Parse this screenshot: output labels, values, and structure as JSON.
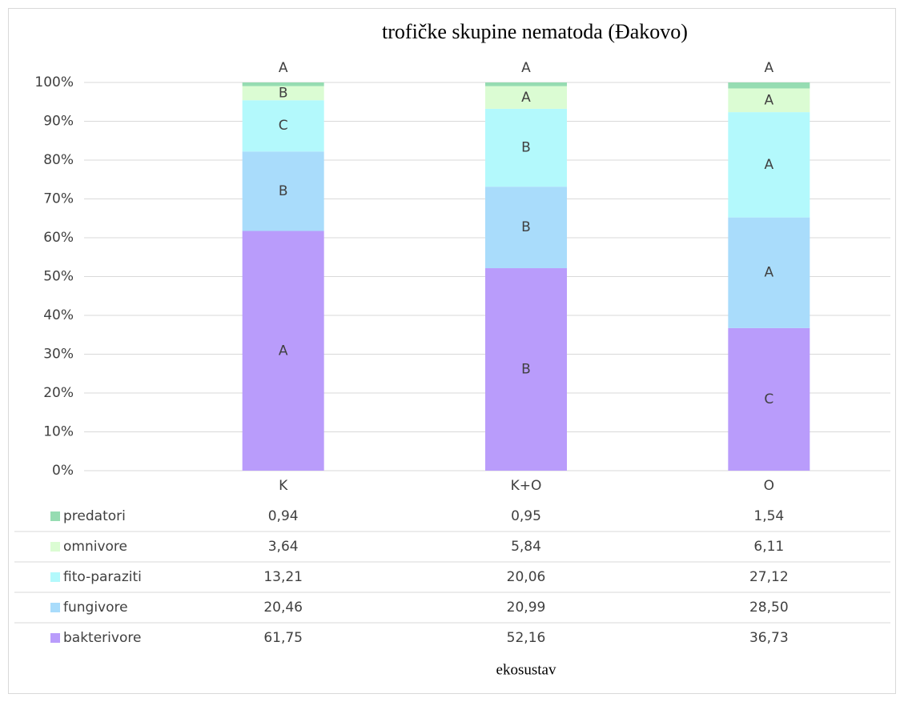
{
  "chart_data": {
    "type": "stacked_bar_100",
    "title": "trofičke skupine nematoda (Đakovo)",
    "x_label": "ekosustav",
    "categories": [
      "K",
      "K+O",
      "O"
    ],
    "ylim": [
      0,
      100
    ],
    "yticks": [
      {
        "value": 0,
        "label": "0%"
      },
      {
        "value": 10,
        "label": "10%"
      },
      {
        "value": 20,
        "label": "20%"
      },
      {
        "value": 30,
        "label": "30%"
      },
      {
        "value": 40,
        "label": "40%"
      },
      {
        "value": 50,
        "label": "50%"
      },
      {
        "value": 60,
        "label": "60%"
      },
      {
        "value": 70,
        "label": "70%"
      },
      {
        "value": 80,
        "label": "80%"
      },
      {
        "value": 90,
        "label": "90%"
      },
      {
        "value": 100,
        "label": "100%"
      }
    ],
    "grid": true,
    "series": [
      {
        "name": "bakterivore",
        "color": "#b99cfb",
        "values": [
          61.75,
          52.16,
          36.73
        ],
        "value_labels": [
          "61,75",
          "52,16",
          "36,73"
        ],
        "segment_labels": [
          "A",
          "B",
          "C"
        ]
      },
      {
        "name": "fungivore",
        "color": "#a9dcfb",
        "values": [
          20.46,
          20.99,
          28.5
        ],
        "value_labels": [
          "20,46",
          "20,99",
          "28,50"
        ],
        "segment_labels": [
          "B",
          "B",
          "A"
        ]
      },
      {
        "name": "fito-paraziti",
        "color": "#b3f9fc",
        "values": [
          13.21,
          20.06,
          27.12
        ],
        "value_labels": [
          "13,21",
          "20,06",
          "27,12"
        ],
        "segment_labels": [
          "C",
          "B",
          "A"
        ]
      },
      {
        "name": "omnivore",
        "color": "#dbfcd3",
        "values": [
          3.64,
          5.84,
          6.11
        ],
        "value_labels": [
          "3,64",
          "5,84",
          "6,11"
        ],
        "segment_labels": [
          "B",
          "A",
          "A"
        ]
      },
      {
        "name": "predatori",
        "color": "#96dcb2",
        "values": [
          0.94,
          0.95,
          1.54
        ],
        "value_labels": [
          "0,94",
          "0,95",
          "1,54"
        ],
        "segment_labels": [
          "A",
          "A",
          "A"
        ]
      }
    ]
  }
}
